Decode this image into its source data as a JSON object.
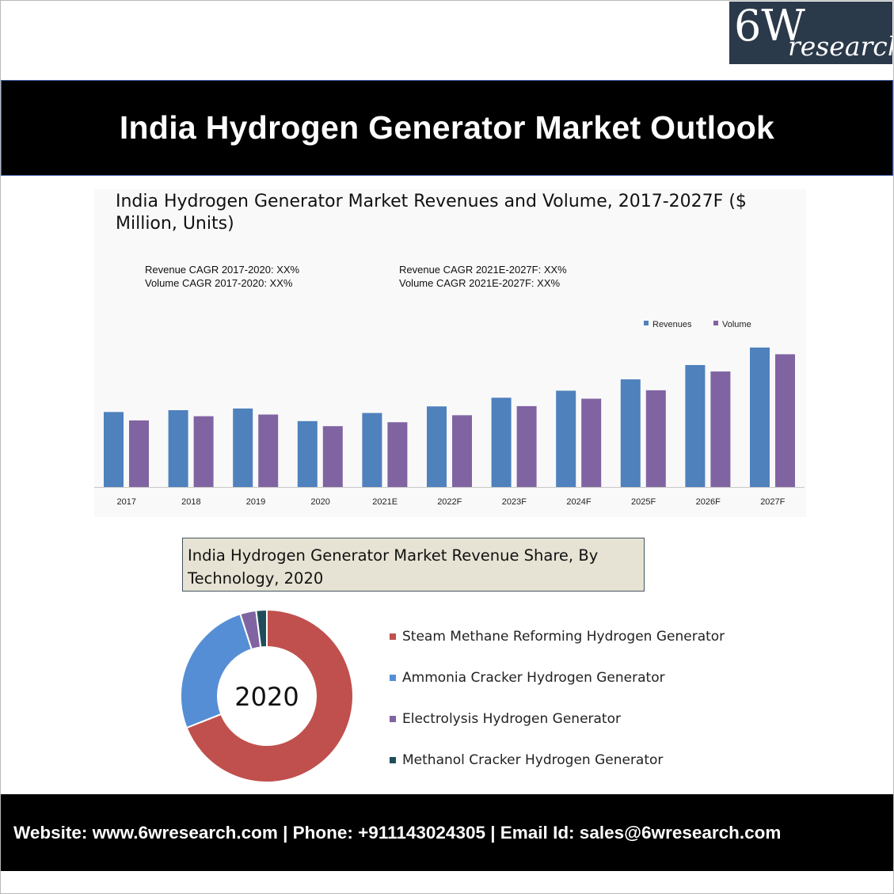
{
  "brand": {
    "logo_big": "6W",
    "logo_small": "research",
    "colors": {
      "logo_bg": "#2b3a4a",
      "title_bar": "#000000",
      "footer_bg": "#000000"
    }
  },
  "page_title": "India Hydrogen Generator Market Outlook",
  "chart_data": [
    {
      "type": "bar",
      "title": "India Hydrogen Generator Market Revenues and Volume, 2017-2027F ($ Million, Units)",
      "annotations": {
        "left": [
          "Revenue CAGR 2017-2020: XX%",
          "Volume CAGR 2017-2020: XX%"
        ],
        "right": [
          "Revenue CAGR 2021E-2027F: XX%",
          "Volume CAGR 2021E-2027F: XX%"
        ]
      },
      "categories": [
        "2017",
        "2018",
        "2019",
        "2020",
        "2021E",
        "2022F",
        "2023F",
        "2024F",
        "2025F",
        "2026F",
        "2027F"
      ],
      "series": [
        {
          "name": "Revenues",
          "color": "#4f81bd",
          "values": [
            53.5,
            54.8,
            56.0,
            47.0,
            52.8,
            57.5,
            63.7,
            68.7,
            76.8,
            87.0,
            99.5
          ]
        },
        {
          "name": "Volume",
          "color": "#8064a2",
          "values": [
            47.5,
            50.5,
            51.7,
            43.4,
            46.2,
            51.2,
            57.7,
            63.0,
            69.0,
            82.4,
            94.7
          ]
        }
      ],
      "ylim": [
        0,
        100
      ],
      "grid": false,
      "legend": "top-right",
      "xlabel": "",
      "ylabel": ""
    },
    {
      "type": "pie",
      "title": "India Hydrogen Generator Market Revenue Share, By Technology, 2020",
      "center_label": "2020",
      "labels": [
        "Steam Methane Reforming Hydrogen Generator",
        "Ammonia Cracker Hydrogen Generator",
        "Electrolysis Hydrogen Generator",
        "Methanol Cracker Hydrogen Generator"
      ],
      "values": [
        69,
        26,
        3,
        2
      ],
      "colors": [
        "#c0504d",
        "#558ed5",
        "#8064a2",
        "#1f4e5a"
      ],
      "legend": "right"
    }
  ],
  "footer": {
    "text": "Website: www.6wresearch.com | Phone: +911143024305 | Email Id: sales@6wresearch.com"
  }
}
